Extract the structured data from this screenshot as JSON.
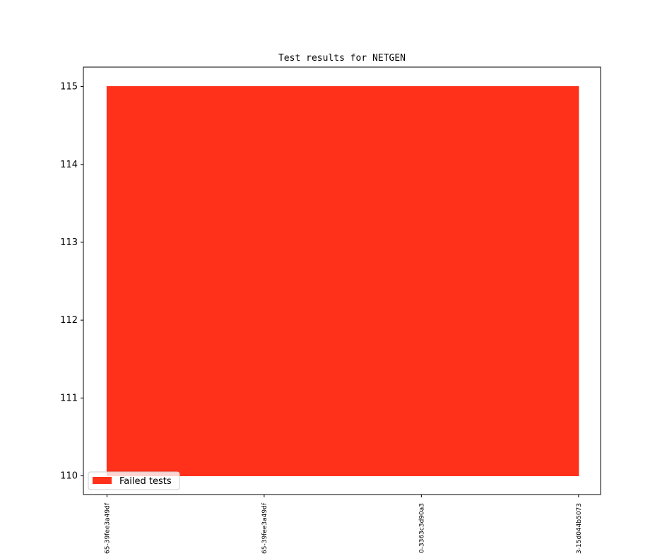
{
  "chart_data": {
    "type": "area",
    "title": "Test results for NETGEN",
    "xlabel": "",
    "ylabel": "",
    "categories": [
      "65-39fee3a49df",
      "65-39fee3a49df",
      "0-3363c3d90a3",
      "3-15d044b5073"
    ],
    "series": [
      {
        "name": "Failed tests",
        "lower": [
          110,
          110,
          110,
          110
        ],
        "values": [
          115,
          115,
          115,
          115
        ],
        "color": "#ff311a"
      }
    ],
    "yticks": [
      110,
      111,
      112,
      113,
      114,
      115
    ],
    "ylim": [
      109.76,
      115.25
    ],
    "xlim": [
      -0.15,
      3.14
    ],
    "grid": false,
    "legend_placement": "lower-left"
  }
}
